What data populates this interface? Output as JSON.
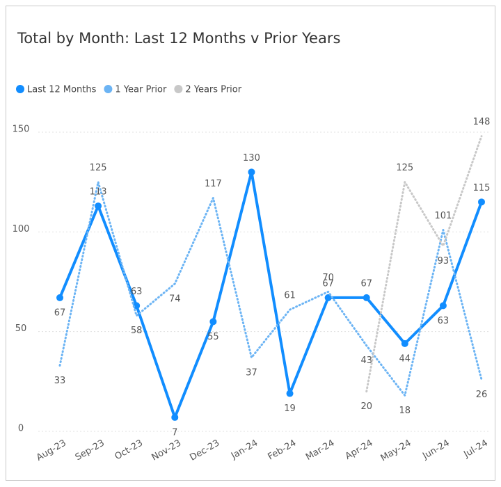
{
  "chart_data": {
    "type": "line",
    "title": "Total by Month: Last 12 Months v Prior Years",
    "categories": [
      "Aug-23",
      "Sep-23",
      "Oct-23",
      "Nov-23",
      "Dec-23",
      "Jan-24",
      "Feb-24",
      "Mar-24",
      "Apr-24",
      "May-24",
      "Jun-24",
      "Jul-24"
    ],
    "series": [
      {
        "name": "Last 12 Months",
        "color": "#118dff",
        "style": "solid",
        "values": [
          67,
          113,
          63,
          7,
          55,
          130,
          19,
          67,
          67,
          44,
          63,
          115
        ]
      },
      {
        "name": "1 Year Prior",
        "color": "#6cb4f4",
        "style": "dotted",
        "values": [
          33,
          125,
          58,
          74,
          117,
          37,
          61,
          70,
          43,
          18,
          101,
          26
        ]
      },
      {
        "name": "2 Years Prior",
        "color": "#c8c8c8",
        "style": "dotted",
        "values": [
          null,
          null,
          null,
          null,
          null,
          null,
          null,
          null,
          20,
          125,
          93,
          148
        ]
      }
    ],
    "ylim": [
      0,
      150
    ],
    "yticks": [
      0,
      50,
      100,
      150
    ],
    "grid": true,
    "legend": "top-left"
  }
}
